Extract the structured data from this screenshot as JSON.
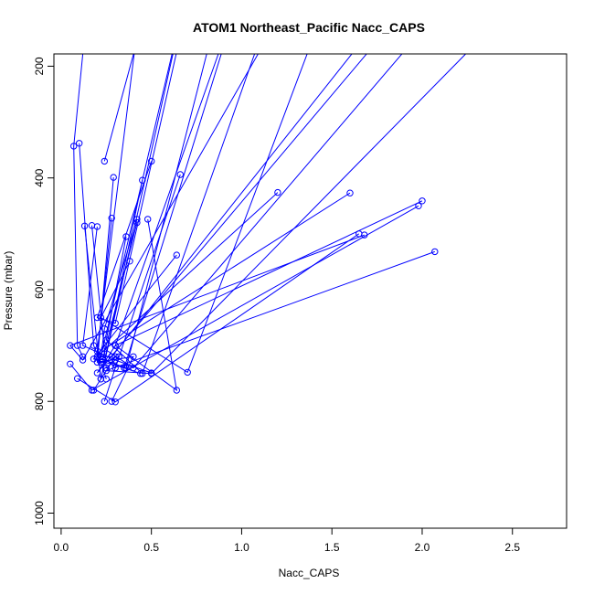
{
  "chart_data": {
    "type": "line",
    "title": "ATOM1 Northeast_Pacific Nacc_CAPS",
    "xlabel": "Nacc_CAPS",
    "ylabel": "Pressure (mbar)",
    "xlim": [
      -0.04,
      2.8
    ],
    "ylim": [
      1027,
      178
    ],
    "y_inverted": true,
    "grid": false,
    "x_ticks": [
      0,
      0.5,
      1,
      1.5,
      2,
      2.5
    ],
    "x_tick_labels": [
      "0.0",
      "0.5",
      "1.0",
      "1.5",
      "2.0",
      "2.5"
    ],
    "y_ticks": [
      200,
      400,
      600,
      800,
      1000
    ],
    "y_tick_labels": [
      "200",
      "400",
      "600",
      "800",
      "1000"
    ],
    "color": "#0000ff",
    "marker": "open-circle",
    "series": [
      {
        "points": [
          [
            0.15,
            80
          ],
          [
            0.07,
            343
          ],
          [
            0.09,
            700
          ],
          [
            0.12,
            720
          ]
        ]
      },
      {
        "points": [
          [
            0.1,
            338
          ],
          [
            0.18,
            700
          ],
          [
            0.22,
            730
          ],
          [
            0.25,
            760
          ]
        ]
      },
      {
        "points": [
          [
            0.13,
            486
          ],
          [
            0.22,
            760
          ],
          [
            0.3,
            720
          ],
          [
            0.18,
            780
          ]
        ]
      },
      {
        "points": [
          [
            0.17,
            485
          ],
          [
            0.25,
            740
          ],
          [
            0.32,
            720
          ],
          [
            0.24,
            800
          ]
        ]
      },
      {
        "points": [
          [
            0.24,
            370
          ],
          [
            0.5,
            60
          ],
          [
            0.45,
            80
          ]
        ]
      },
      {
        "points": [
          [
            0.29,
            399
          ],
          [
            0.2,
            730
          ],
          [
            0.4,
            720
          ],
          [
            0.28,
            800
          ]
        ]
      },
      {
        "points": [
          [
            0.2,
            487
          ],
          [
            0.12,
            700
          ],
          [
            0.3,
            726
          ],
          [
            0.5,
            749
          ]
        ]
      },
      {
        "points": [
          [
            0.28,
            472
          ],
          [
            0.2,
            720
          ],
          [
            0.35,
            740
          ],
          [
            0.44,
            750
          ]
        ]
      },
      {
        "points": [
          [
            0.45,
            404
          ],
          [
            0.22,
            760
          ],
          [
            0.7,
            60
          ]
        ]
      },
      {
        "points": [
          [
            0.5,
            370
          ],
          [
            0.2,
            650
          ],
          [
            0.3,
            660
          ],
          [
            0.72,
            60
          ]
        ]
      },
      {
        "points": [
          [
            0.66,
            394
          ],
          [
            0.3,
            740
          ],
          [
            0.2,
            710
          ],
          [
            0.45,
            60
          ]
        ]
      },
      {
        "points": [
          [
            0.42,
            474
          ],
          [
            0.24,
            670
          ],
          [
            0.22,
            720
          ],
          [
            0.7,
            60
          ]
        ]
      },
      {
        "points": [
          [
            0.48,
            474
          ],
          [
            0.64,
            780
          ],
          [
            0.3,
            700
          ],
          [
            1.0,
            60
          ]
        ]
      },
      {
        "points": [
          [
            0.42,
            480
          ],
          [
            0.23,
            725
          ],
          [
            0.36,
            740
          ],
          [
            0.9,
            60
          ]
        ]
      },
      {
        "points": [
          [
            0.36,
            505
          ],
          [
            0.25,
            690
          ],
          [
            0.45,
            750
          ],
          [
            1.2,
            60
          ]
        ]
      },
      {
        "points": [
          [
            0.38,
            549
          ],
          [
            0.22,
            650
          ],
          [
            0.7,
            748
          ],
          [
            1.5,
            60
          ]
        ]
      },
      {
        "points": [
          [
            0.64,
            538
          ],
          [
            0.18,
            724
          ],
          [
            0.35,
            740
          ],
          [
            1.0,
            60
          ]
        ]
      },
      {
        "points": [
          [
            1.2,
            426
          ],
          [
            0.2,
            720
          ],
          [
            0.28,
            720
          ],
          [
            1.9,
            60
          ]
        ]
      },
      {
        "points": [
          [
            1.6,
            427
          ],
          [
            0.24,
            706
          ],
          [
            0.4,
            740
          ],
          [
            2.2,
            60
          ]
        ]
      },
      {
        "points": [
          [
            1.68,
            502
          ],
          [
            0.05,
            700
          ],
          [
            0.12,
            726
          ],
          [
            1.3,
            60
          ]
        ]
      },
      {
        "points": [
          [
            2.0,
            441
          ],
          [
            0.3,
            700
          ],
          [
            0.2,
            749
          ],
          [
            2.0,
            60
          ]
        ]
      },
      {
        "points": [
          [
            2.07,
            532
          ],
          [
            0.25,
            745
          ],
          [
            0.5,
            750
          ],
          [
            2.6,
            60
          ]
        ]
      },
      {
        "points": [
          [
            0.05,
            733
          ],
          [
            0.17,
            780
          ],
          [
            1.98,
            450
          ]
        ]
      },
      {
        "points": [
          [
            0.09,
            759
          ],
          [
            0.3,
            801
          ],
          [
            1.65,
            500
          ]
        ]
      }
    ]
  }
}
